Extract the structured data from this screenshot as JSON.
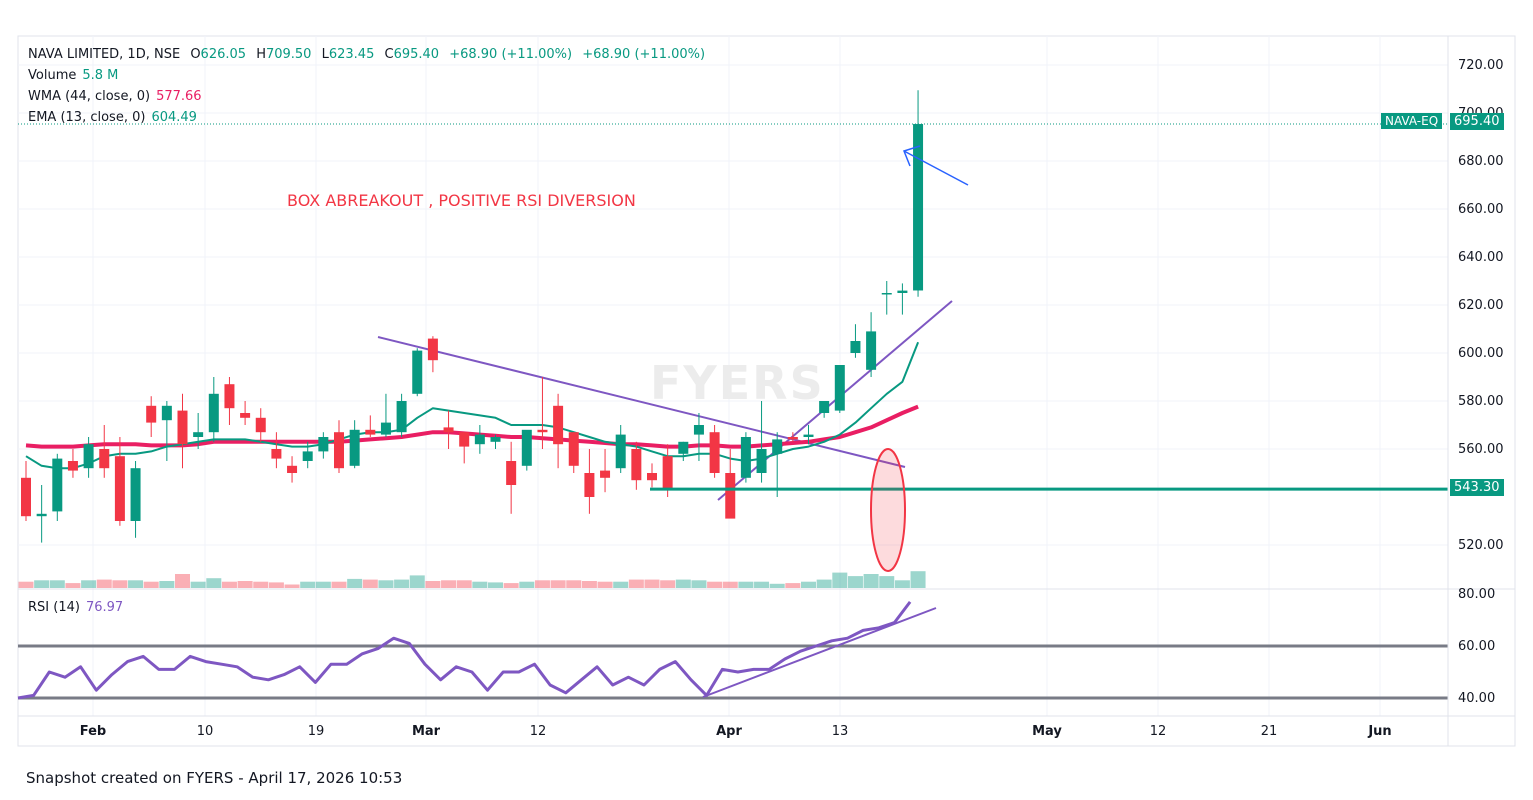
{
  "legend": {
    "symbol": "NAVA LIMITED, 1D, NSE",
    "open_label": "O",
    "open": "626.05",
    "high_label": "H",
    "high": "709.50",
    "low_label": "L",
    "low": "623.45",
    "close_label": "C",
    "close": "695.40",
    "change": "+68.90 (+11.00%)",
    "change2": "+68.90 (+11.00%)",
    "volume_label": "Volume",
    "volume": "5.8 M",
    "wma_label": "WMA (44, close, 0)",
    "wma": "577.66",
    "ema_label": "EMA (13, close, 0)",
    "ema": "604.49"
  },
  "rsi_legend": {
    "label": "RSI (14)",
    "value": "76.97"
  },
  "annotation": "BOX ABREAKOUT , POSITIVE RSI DIVERSION",
  "footer": "Snapshot created on FYERS - April 17, 2026 10:53",
  "watermark": "FYERS",
  "tags": {
    "symbol": "NAVA-EQ",
    "last_price": "695.40",
    "support": "543.30"
  },
  "colors": {
    "up": "#089981",
    "down": "#f23645",
    "wma": "#e91e63",
    "ema": "#089981",
    "rsi": "#7e57c2",
    "trend": "#7e57c2",
    "arrow": "#2962ff"
  },
  "chart_data": {
    "type": "candlestick",
    "price_axis": {
      "ticks": [
        "720.00",
        "700.00",
        "680.00",
        "660.00",
        "640.00",
        "620.00",
        "600.00",
        "580.00",
        "560.00",
        "520.00"
      ],
      "range": [
        512,
        725
      ]
    },
    "rsi_axis": {
      "ticks": [
        "80.00",
        "60.00",
        "40.00"
      ],
      "levels": [
        60,
        40
      ]
    },
    "time_axis": [
      "Feb",
      "10",
      "19",
      "Mar",
      "12",
      "Apr",
      "13",
      "May",
      "12",
      "21",
      "Jun"
    ],
    "candles": [
      [
        548,
        555,
        530,
        532
      ],
      [
        532,
        545,
        521,
        533
      ],
      [
        534,
        558,
        530,
        556
      ],
      [
        555,
        560,
        548,
        551
      ],
      [
        552,
        565,
        548,
        562
      ],
      [
        560,
        570,
        548,
        552
      ],
      [
        557,
        565,
        528,
        530
      ],
      [
        530,
        555,
        523,
        552
      ],
      [
        578,
        582,
        565,
        571
      ],
      [
        572,
        580,
        555,
        578
      ],
      [
        576,
        583,
        552,
        562
      ],
      [
        565,
        575,
        560,
        567
      ],
      [
        567,
        590,
        563,
        583
      ],
      [
        587,
        590,
        570,
        577
      ],
      [
        575,
        580,
        570,
        573
      ],
      [
        573,
        577,
        563,
        567
      ],
      [
        560,
        567,
        552,
        556
      ],
      [
        553,
        557,
        546,
        550
      ],
      [
        555,
        563,
        552,
        559
      ],
      [
        559,
        567,
        556,
        565
      ],
      [
        567,
        572,
        550,
        552
      ],
      [
        553,
        572,
        552,
        568
      ],
      [
        568,
        574,
        565,
        566
      ],
      [
        566,
        583,
        565,
        571
      ],
      [
        567,
        583,
        565,
        580
      ],
      [
        583,
        602,
        582,
        601
      ],
      [
        606,
        607,
        592,
        597
      ],
      [
        569,
        576,
        560,
        567
      ],
      [
        567,
        567,
        554,
        561
      ],
      [
        562,
        570,
        558,
        566
      ],
      [
        563,
        566,
        560,
        565
      ],
      [
        555,
        563,
        533,
        545
      ],
      [
        553,
        567,
        551,
        568
      ],
      [
        568,
        590,
        560,
        567
      ],
      [
        578,
        583,
        552,
        562
      ],
      [
        567,
        567,
        550,
        553
      ],
      [
        550,
        560,
        533,
        540
      ],
      [
        551,
        560,
        542,
        548
      ],
      [
        552,
        570,
        550,
        566
      ],
      [
        560,
        563,
        543,
        547
      ],
      [
        550,
        554,
        544,
        547
      ],
      [
        557,
        562,
        540,
        543
      ],
      [
        558,
        563,
        555,
        563
      ],
      [
        566,
        575,
        555,
        570
      ],
      [
        567,
        570,
        548,
        550
      ],
      [
        550,
        560,
        532,
        531
      ],
      [
        548,
        567,
        546,
        565
      ],
      [
        550,
        580,
        546,
        560
      ],
      [
        558,
        567,
        540,
        564
      ],
      [
        565,
        567,
        563,
        564
      ],
      [
        565,
        570,
        562,
        566
      ],
      [
        575,
        580,
        573,
        580
      ],
      [
        576,
        595,
        575,
        595
      ],
      [
        600,
        612,
        598,
        605
      ],
      [
        593,
        617,
        590,
        609
      ],
      [
        625,
        630,
        616,
        625
      ],
      [
        625,
        629,
        616,
        626
      ],
      [
        626.05,
        709.5,
        623.45,
        695.4
      ]
    ],
    "volume_relative": [
      0.45,
      0.55,
      0.55,
      0.35,
      0.55,
      0.6,
      0.55,
      0.55,
      0.45,
      0.5,
      1.0,
      0.45,
      0.7,
      0.45,
      0.5,
      0.45,
      0.4,
      0.25,
      0.45,
      0.45,
      0.45,
      0.65,
      0.6,
      0.55,
      0.6,
      0.9,
      0.5,
      0.55,
      0.55,
      0.45,
      0.4,
      0.35,
      0.45,
      0.55,
      0.55,
      0.55,
      0.5,
      0.45,
      0.45,
      0.6,
      0.6,
      0.55,
      0.6,
      0.55,
      0.45,
      0.45,
      0.45,
      0.45,
      0.3,
      0.35,
      0.45,
      0.6,
      1.1,
      0.85,
      1.0,
      0.85,
      0.55,
      1.2
    ],
    "ema13": [
      557,
      553,
      552,
      552,
      554,
      557,
      558,
      558,
      559,
      561,
      562,
      563,
      564,
      564,
      564,
      563,
      562,
      561,
      561,
      562,
      564,
      566,
      567,
      567,
      568,
      573,
      577,
      576,
      575,
      574,
      573,
      570,
      570,
      570,
      569,
      567,
      565,
      563,
      562,
      561,
      559,
      557,
      557,
      558,
      558,
      556,
      555,
      556,
      558,
      560,
      561,
      563,
      566,
      571,
      577,
      583,
      588,
      604.49
    ],
    "wma44": [
      561.5,
      561,
      561,
      561,
      561.5,
      562,
      562,
      562,
      561.5,
      561.5,
      561.5,
      562,
      563,
      563,
      563,
      563,
      563,
      563,
      563,
      563,
      563,
      563.5,
      564,
      564.5,
      565,
      566,
      567,
      567,
      566.5,
      566,
      565.5,
      565,
      565,
      564.5,
      564,
      563.5,
      563,
      562.5,
      562,
      562,
      561.5,
      561,
      561,
      561.5,
      561.5,
      561,
      561,
      561.5,
      562,
      562.5,
      563,
      564,
      565,
      567,
      569,
      572,
      575,
      577.66
    ],
    "rsi14": [
      40,
      41,
      50,
      48,
      52,
      43,
      49,
      54,
      56,
      51,
      51,
      56,
      54,
      53,
      52,
      48,
      47,
      49,
      52,
      46,
      53,
      53,
      57,
      59,
      63,
      61,
      53,
      47,
      52,
      50,
      43,
      50,
      50,
      53,
      45,
      42,
      47,
      52,
      45,
      48,
      45,
      51,
      54,
      47,
      41,
      51,
      50,
      51,
      51,
      55,
      58,
      60,
      62,
      63,
      66,
      67,
      69,
      76.97
    ],
    "support_level": 543.3,
    "last_price": 695.4
  }
}
